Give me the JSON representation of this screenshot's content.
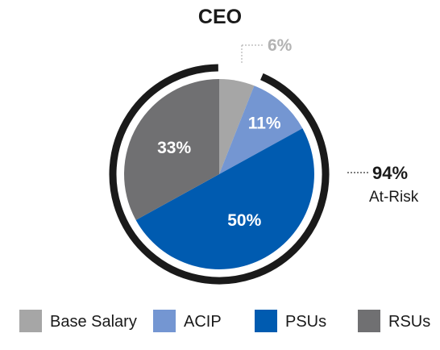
{
  "chart_data": {
    "type": "pie",
    "title": "CEO",
    "slices": [
      {
        "name": "Base Salary",
        "value": 6,
        "label": "6%",
        "color": "#a6a6a6"
      },
      {
        "name": "ACIP",
        "value": 11,
        "label": "11%",
        "color": "#7496d2"
      },
      {
        "name": "PSUs",
        "value": 50,
        "label": "50%",
        "color": "#005bb0"
      },
      {
        "name": "RSUs",
        "value": 33,
        "label": "33%",
        "color": "#707072"
      }
    ],
    "at_risk": {
      "value": "94%",
      "label": "At-Risk"
    },
    "legend_position": "bottom",
    "legend": [
      "Base Salary",
      "ACIP",
      "PSUs",
      "RSUs"
    ],
    "ring_color": "#1a1a1a"
  }
}
